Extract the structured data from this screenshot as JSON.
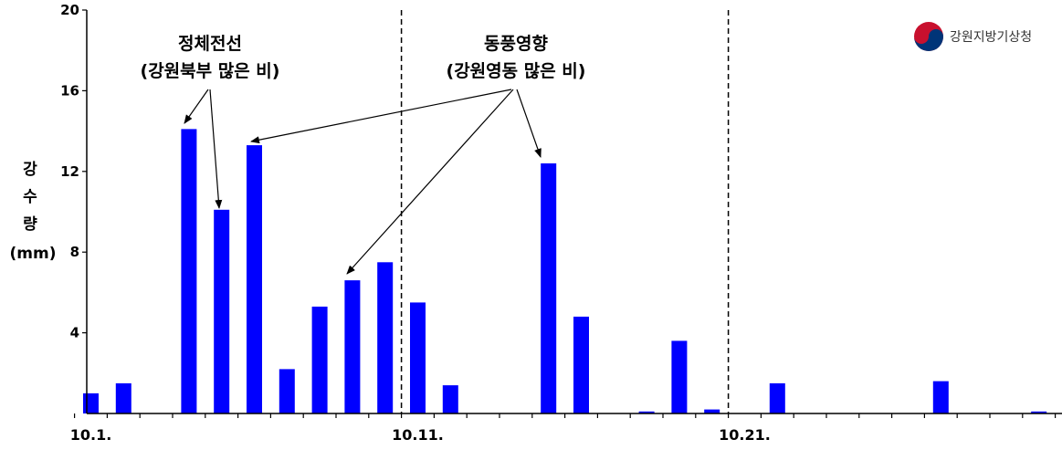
{
  "chart_data": {
    "type": "bar",
    "x_tick_labels": [
      "10.1.",
      "10.11.",
      "10.21."
    ],
    "values": [
      1.0,
      1.5,
      0,
      14.1,
      10.1,
      13.3,
      2.2,
      5.3,
      6.6,
      7.5,
      5.5,
      1.4,
      0,
      0,
      12.4,
      4.8,
      0,
      0.1,
      3.6,
      0.2,
      0,
      1.5,
      0,
      0,
      0,
      0,
      1.6,
      0,
      0,
      0.1
    ],
    "yticks": [
      4,
      8,
      12,
      16,
      20
    ],
    "ylim": [
      0,
      20
    ],
    "ylabel_lines": [
      "강",
      "수",
      "량",
      "(mm)"
    ],
    "bar_color": "#0000ff",
    "divider_lines_after": [
      "10.10.",
      "10.20."
    ],
    "annotations": [
      {
        "lines": [
          "정체전선",
          "(강원북부 많은 비)"
        ]
      },
      {
        "lines": [
          "동풍영향",
          "(강원영동 많은 비)"
        ]
      }
    ]
  },
  "logo": {
    "text": "강원지방기상청"
  }
}
